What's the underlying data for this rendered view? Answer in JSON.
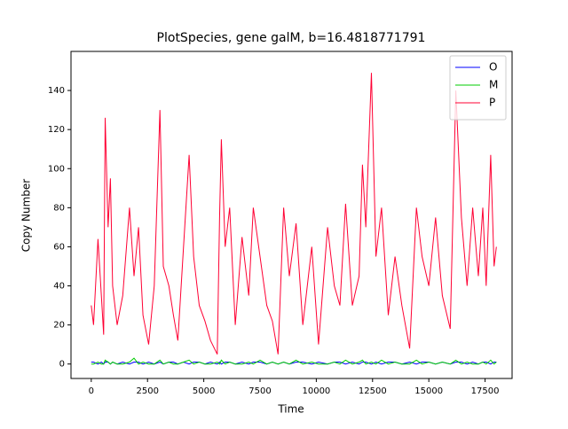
{
  "chart_data": {
    "type": "line",
    "title": "PlotSpecies, gene galM, b=16.4818771791",
    "xlabel": "Time",
    "ylabel": "Copy Number",
    "x": [
      0,
      100,
      300,
      450,
      550,
      620,
      750,
      850,
      950,
      1150,
      1400,
      1700,
      1900,
      2100,
      2300,
      2550,
      2800,
      3050,
      3200,
      3450,
      3650,
      3850,
      4100,
      4350,
      4550,
      4800,
      5050,
      5300,
      5600,
      5700,
      5780,
      5950,
      6150,
      6400,
      6700,
      7000,
      7200,
      7500,
      7800,
      8050,
      8300,
      8550,
      8800,
      9100,
      9400,
      9800,
      10100,
      10500,
      10800,
      11050,
      11300,
      11600,
      11900,
      12050,
      12200,
      12450,
      12650,
      12900,
      13200,
      13500,
      13800,
      14150,
      14450,
      14700,
      15000,
      15300,
      15600,
      15950,
      16200,
      16450,
      16700,
      16950,
      17200,
      17400,
      17550,
      17750,
      17900,
      18000
    ],
    "series": [
      {
        "name": "O",
        "color": "#0000ff",
        "values": [
          1,
          1,
          0,
          1,
          0,
          1,
          1,
          0,
          1,
          0,
          1,
          0,
          1,
          1,
          0,
          1,
          0,
          1,
          0,
          1,
          1,
          0,
          1,
          0,
          1,
          1,
          0,
          1,
          0,
          1,
          0,
          1,
          1,
          0,
          1,
          0,
          1,
          1,
          0,
          1,
          0,
          1,
          0,
          1,
          1,
          0,
          1,
          0,
          1,
          1,
          0,
          1,
          0,
          1,
          1,
          0,
          1,
          0,
          1,
          1,
          0,
          1,
          0,
          1,
          1,
          0,
          1,
          0,
          1,
          1,
          0,
          1,
          0,
          1,
          1,
          0,
          1,
          1
        ]
      },
      {
        "name": "M",
        "color": "#00cc00",
        "values": [
          0,
          0,
          1,
          0,
          0,
          2,
          1,
          0,
          1,
          0,
          0,
          1,
          3,
          0,
          1,
          0,
          0,
          2,
          0,
          1,
          0,
          0,
          1,
          2,
          0,
          1,
          0,
          0,
          1,
          0,
          2,
          0,
          1,
          0,
          0,
          1,
          0,
          2,
          0,
          1,
          0,
          1,
          0,
          2,
          0,
          1,
          0,
          0,
          1,
          0,
          2,
          0,
          1,
          2,
          0,
          1,
          0,
          2,
          0,
          1,
          0,
          0,
          2,
          0,
          1,
          0,
          1,
          0,
          2,
          0,
          1,
          0,
          0,
          1,
          0,
          2,
          0,
          1
        ]
      },
      {
        "name": "P",
        "color": "#ff0033",
        "values": [
          30,
          20,
          64,
          35,
          15,
          126,
          70,
          95,
          40,
          20,
          35,
          80,
          45,
          70,
          25,
          10,
          40,
          130,
          50,
          40,
          25,
          12,
          60,
          107,
          55,
          30,
          22,
          12,
          5,
          75,
          115,
          60,
          80,
          20,
          65,
          35,
          80,
          55,
          30,
          22,
          5,
          80,
          45,
          72,
          20,
          60,
          10,
          70,
          40,
          30,
          82,
          30,
          45,
          102,
          70,
          149,
          55,
          80,
          25,
          55,
          30,
          8,
          80,
          55,
          40,
          75,
          35,
          18,
          140,
          75,
          40,
          80,
          45,
          80,
          40,
          107,
          50,
          60
        ]
      }
    ],
    "xlim": [
      -900,
      18700
    ],
    "ylim": [
      -7.4,
      160
    ],
    "xticks": [
      0,
      2500,
      5000,
      7500,
      10000,
      12500,
      15000,
      17500
    ],
    "yticks": [
      0,
      20,
      40,
      60,
      80,
      100,
      120,
      140
    ],
    "legend": "upper right"
  }
}
